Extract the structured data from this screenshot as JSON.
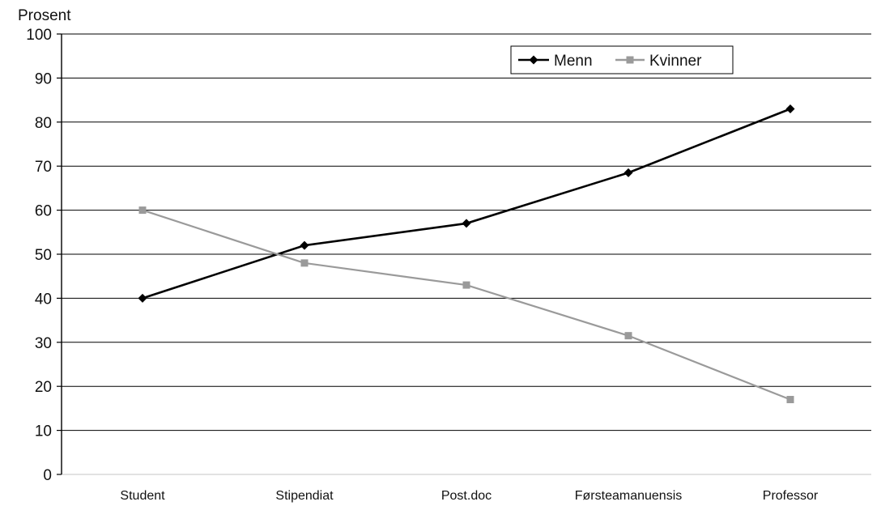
{
  "chart_data": {
    "type": "line",
    "ylabel": "Prosent",
    "ylim": [
      0,
      100
    ],
    "yticks": [
      0,
      10,
      20,
      30,
      40,
      50,
      60,
      70,
      80,
      90,
      100
    ],
    "grid": true,
    "legend_position": "top-right",
    "categories": [
      "Student",
      "Stipendiat",
      "Post.doc",
      "Førsteamanuensis",
      "Professor"
    ],
    "series": [
      {
        "name": "Menn",
        "values": [
          40,
          52,
          57,
          68.5,
          83
        ],
        "color": "#000000",
        "marker": "diamond"
      },
      {
        "name": "Kvinner",
        "values": [
          60,
          48,
          43,
          31.5,
          17
        ],
        "color": "#9a9a9a",
        "marker": "square"
      }
    ]
  }
}
